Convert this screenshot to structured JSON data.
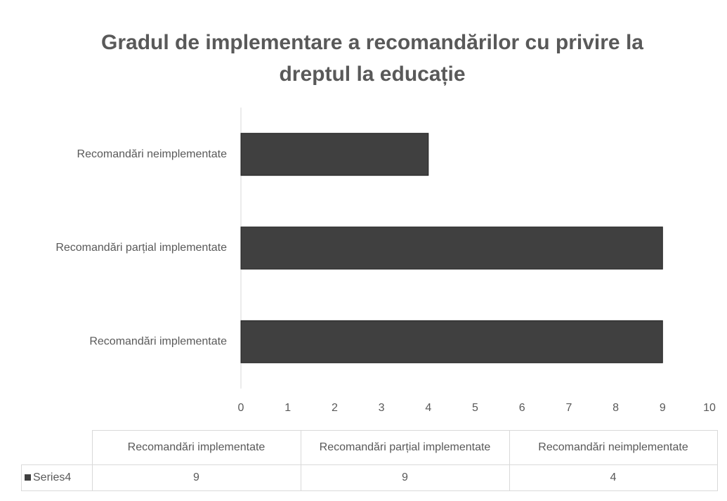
{
  "chart_data": {
    "type": "bar",
    "orientation": "horizontal",
    "title": "Gradul de implementare a recomandărilor cu privire la dreptul la educație",
    "categories": [
      "Recomandări implementate",
      "Recomandări parțial implementate",
      "Recomandări neimplementate"
    ],
    "series": [
      {
        "name": "Series4",
        "color": "#404040",
        "values": [
          9,
          9,
          4
        ]
      }
    ],
    "xlim": [
      0,
      10
    ],
    "xticks": [
      0,
      1,
      2,
      3,
      4,
      5,
      6,
      7,
      8,
      9,
      10
    ],
    "grid": false,
    "data_table": true
  }
}
